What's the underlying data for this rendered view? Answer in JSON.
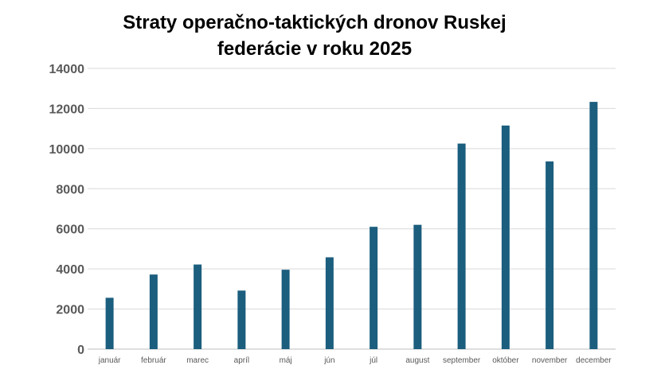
{
  "chart_data": {
    "type": "bar",
    "title_lines": [
      "Straty operačno-taktických dronov Ruskej",
      "federácie v roku 2025"
    ],
    "categories": [
      "január",
      "február",
      "marec",
      "apríl",
      "máj",
      "jún",
      "júl",
      "august",
      "september",
      "október",
      "november",
      "december"
    ],
    "values": [
      2560,
      3720,
      4220,
      2920,
      3960,
      4580,
      6100,
      6200,
      10250,
      11150,
      9360,
      12330
    ],
    "ylim": [
      0,
      14000
    ],
    "yticks": [
      "0",
      "2000",
      "4000",
      "6000",
      "8000",
      "10000",
      "12000",
      "14000"
    ],
    "xlabel": "",
    "ylabel": "",
    "grid": true,
    "legend": "none",
    "bar_color": "#1b5e7e",
    "grid_color": "#d9d9d9"
  }
}
